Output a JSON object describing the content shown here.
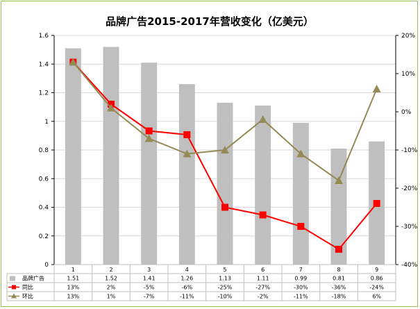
{
  "chart_data": {
    "type": "bar",
    "title": "品牌广告2015-2017年营收变化（亿美元）",
    "categories": [
      "1",
      "2",
      "3",
      "4",
      "5",
      "6",
      "7",
      "8",
      "9"
    ],
    "ylim": [
      0,
      1.6
    ],
    "y_ticks": [
      "0",
      "0.2",
      "0.4",
      "0.6",
      "0.8",
      "1",
      "1.2",
      "1.4",
      "1.6"
    ],
    "y2lim": [
      -40,
      20
    ],
    "y2_ticks": [
      "-40%",
      "-30%",
      "-20%",
      "-10%",
      "0%",
      "10%",
      "20%"
    ],
    "grid": true,
    "series": [
      {
        "name": "品牌广告",
        "type": "bar",
        "axis": "left",
        "color": "#bfbfbf",
        "values": [
          1.51,
          1.52,
          1.41,
          1.26,
          1.13,
          1.11,
          0.99,
          0.81,
          0.86
        ],
        "labels": [
          "1.51",
          "1.52",
          "1.41",
          "1.26",
          "1.13",
          "1.11",
          "0.99",
          "0.81",
          "0.86"
        ]
      },
      {
        "name": "同比",
        "type": "line",
        "axis": "right",
        "marker": "square",
        "color": "#ff0000",
        "values": [
          13,
          2,
          -5,
          -6,
          -25,
          -27,
          -30,
          -36,
          -24
        ],
        "labels": [
          "13%",
          "2%",
          "-5%",
          "-6%",
          "-25%",
          "-27%",
          "-30%",
          "-36%",
          "-24%"
        ]
      },
      {
        "name": "环比",
        "type": "line",
        "axis": "right",
        "marker": "triangle",
        "color": "#948a54",
        "values": [
          13,
          1,
          -7,
          -11,
          -10,
          -2,
          -11,
          -18,
          6
        ],
        "labels": [
          "13%",
          "1%",
          "-7%",
          "-11%",
          "-10%",
          "-2%",
          "-11%",
          "-18%",
          "6%"
        ]
      }
    ]
  }
}
